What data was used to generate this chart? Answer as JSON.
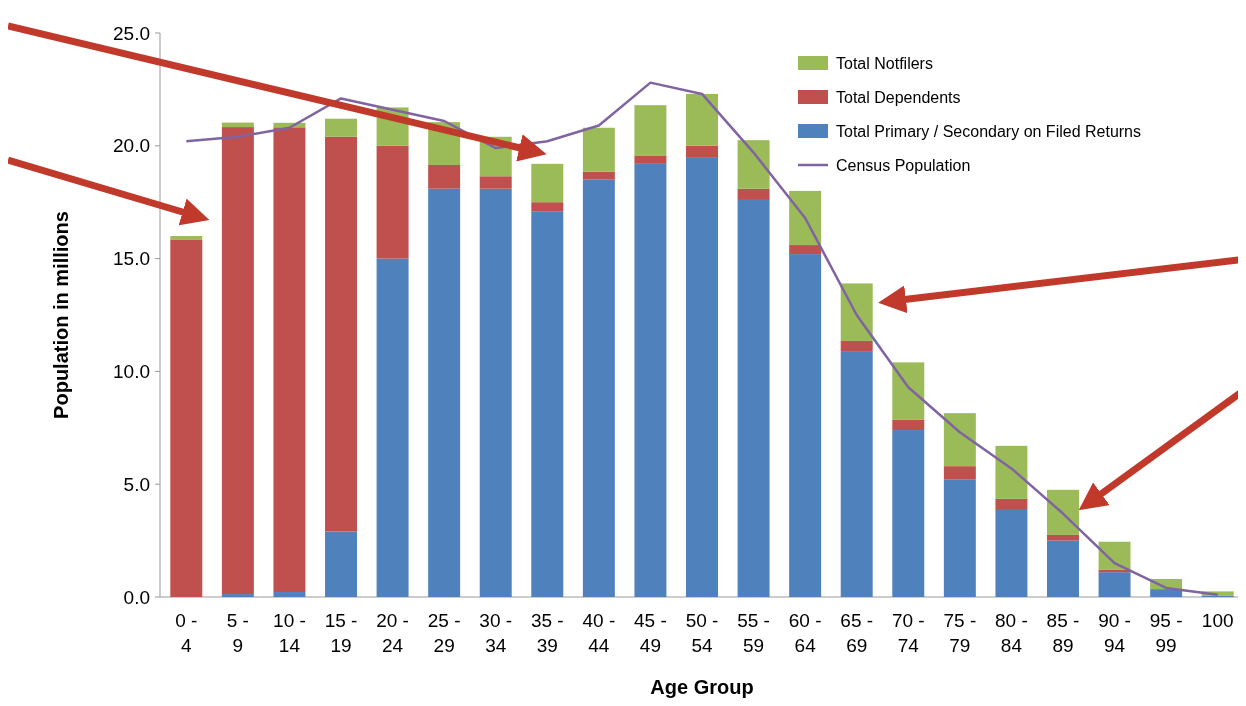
{
  "chart_data": {
    "type": "bar",
    "stacked": true,
    "xlabel": "Age Group",
    "ylabel": "Population in millions",
    "categories": [
      "0 - 4",
      "5 - 9",
      "10 - 14",
      "15 - 19",
      "20 - 24",
      "25 - 29",
      "30 - 34",
      "35 - 39",
      "40 - 44",
      "45 - 49",
      "50 - 54",
      "55 - 59",
      "60 - 64",
      "65 - 69",
      "70 - 74",
      "75 - 79",
      "80 - 84",
      "85 - 89",
      "90 - 94",
      "95 - 99",
      "100"
    ],
    "series": [
      {
        "name": "Total Primary / Secondary on Filed Returns",
        "color": "#4f81bd",
        "values": [
          0,
          0.13,
          0.22,
          2.9,
          15.0,
          18.1,
          18.1,
          17.1,
          18.5,
          19.2,
          19.5,
          17.6,
          15.2,
          10.9,
          7.4,
          5.2,
          3.9,
          2.5,
          1.1,
          0.35,
          0.05
        ]
      },
      {
        "name": "Total Dependents",
        "color": "#c0504d",
        "values": [
          15.85,
          20.7,
          20.6,
          17.5,
          5.0,
          1.05,
          0.55,
          0.4,
          0.35,
          0.35,
          0.5,
          0.5,
          0.4,
          0.45,
          0.45,
          0.6,
          0.45,
          0.25,
          0.1,
          null,
          0.02
        ]
      },
      {
        "name": "Total Notfilers",
        "color": "#9bbb59",
        "values": [
          0.15,
          0.2,
          0.2,
          0.8,
          1.7,
          1.9,
          1.75,
          1.7,
          1.95,
          2.25,
          2.3,
          2.15,
          2.4,
          2.55,
          2.55,
          2.35,
          2.35,
          2.0,
          1.25,
          0.45,
          0.18
        ]
      },
      {
        "name": "Census Population",
        "type": "line",
        "color": "#8064a2",
        "values": [
          20.2,
          20.4,
          20.8,
          22.1,
          21.6,
          21.1,
          19.9,
          20.2,
          20.9,
          22.8,
          22.3,
          19.7,
          16.8,
          12.5,
          9.3,
          7.3,
          5.7,
          3.7,
          1.5,
          0.4,
          0.1
        ]
      }
    ],
    "ylim": [
      0,
      25
    ],
    "yticks": [
      {
        "value": 0,
        "label": "0.0"
      },
      {
        "value": 5,
        "label": "5.0"
      },
      {
        "value": 10,
        "label": "10.0"
      },
      {
        "value": 15,
        "label": "15.0"
      },
      {
        "value": 20,
        "label": "20.0"
      },
      {
        "value": 25,
        "label": "25.0"
      }
    ],
    "legend": "top right",
    "marker": "none",
    "grid": false
  }
}
